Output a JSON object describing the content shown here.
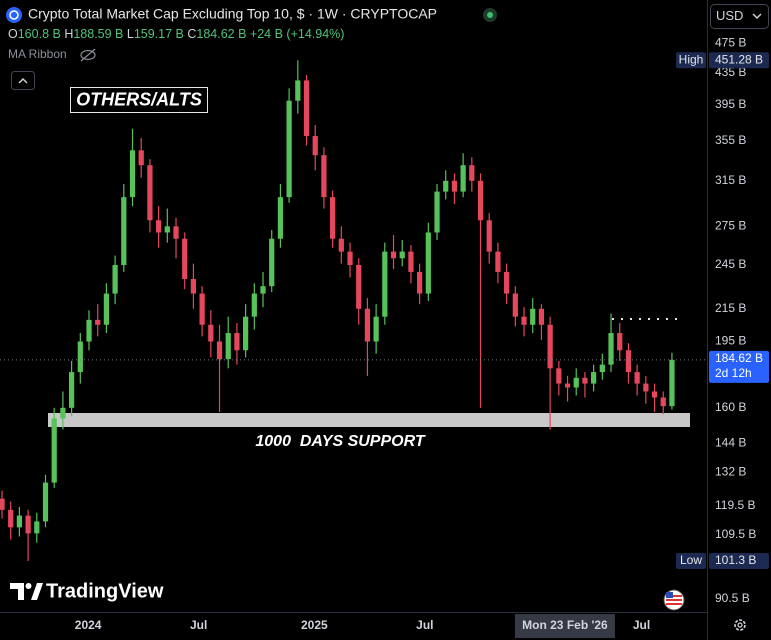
{
  "header": {
    "title": "Crypto Total Market Cap Excluding Top 10, $ · 1W · CRYPTOCAP",
    "ohlc_legend": [
      {
        "key": "O",
        "value": "160.8 B"
      },
      {
        "key": "H",
        "value": "188.59 B"
      },
      {
        "key": "L",
        "value": "159.17 B"
      },
      {
        "key": "C",
        "value": "184.62 B"
      }
    ],
    "change": "+24 B (+14.94%)",
    "indicator": "MA Ribbon",
    "currency": "USD"
  },
  "annotations": {
    "tag": "OTHERS/ALTS",
    "support": "1000  DAYS SUPPORT"
  },
  "price_labels": {
    "high_label": "High",
    "high_value": "451.28 B",
    "last_value": "184.62 B",
    "countdown": "2d 12h",
    "low_label": "Low",
    "low_value": "101.3 B"
  },
  "branding": "TradingView",
  "chart_data": {
    "type": "candlestick",
    "log_scale": true,
    "grid": false,
    "up_color": "#57c25a",
    "down_color": "#e5475c",
    "xlim": [
      -0.23,
      81.03
    ],
    "ylim": [
      87,
      494
    ],
    "xticks": [
      {
        "value": 9.9,
        "label": "2024"
      },
      {
        "value": 22.6,
        "label": "Jul"
      },
      {
        "value": 35.9,
        "label": "2025"
      },
      {
        "value": 48.6,
        "label": "Jul"
      },
      {
        "value": 64.7,
        "label": "Mon 23 Feb '26",
        "crosshair": true
      },
      {
        "value": 73.5,
        "label": "Jul"
      }
    ],
    "yticks": [
      {
        "value": 475,
        "label": "475 B"
      },
      {
        "value": 435,
        "label": "435 B"
      },
      {
        "value": 395,
        "label": "395 B"
      },
      {
        "value": 355,
        "label": "355 B"
      },
      {
        "value": 315,
        "label": "315 B"
      },
      {
        "value": 275,
        "label": "275 B"
      },
      {
        "value": 245,
        "label": "245 B"
      },
      {
        "value": 215,
        "label": "215 B"
      },
      {
        "value": 195,
        "label": "195 B"
      },
      {
        "value": 160,
        "label": "160 B"
      },
      {
        "value": 144,
        "label": "144 B"
      },
      {
        "value": 132,
        "label": "132 B"
      },
      {
        "value": 119.5,
        "label": "119.5 B"
      },
      {
        "value": 109.5,
        "label": "109.5 B"
      },
      {
        "value": 90.5,
        "label": "90.5 B"
      }
    ],
    "ohlc": [
      [
        122,
        125,
        115,
        118
      ],
      [
        118,
        121,
        108,
        112
      ],
      [
        112,
        119,
        109,
        116
      ],
      [
        116,
        118,
        101.3,
        110
      ],
      [
        110,
        117,
        107,
        114
      ],
      [
        114,
        131,
        112,
        128
      ],
      [
        128,
        160,
        126,
        155
      ],
      [
        155,
        168,
        150,
        160
      ],
      [
        160,
        184,
        156,
        178
      ],
      [
        178,
        200,
        172,
        195
      ],
      [
        195,
        214,
        190,
        208
      ],
      [
        208,
        218,
        198,
        205
      ],
      [
        205,
        232,
        200,
        225
      ],
      [
        225,
        252,
        218,
        245
      ],
      [
        245,
        312,
        240,
        300
      ],
      [
        300,
        368,
        292,
        345
      ],
      [
        345,
        358,
        318,
        330
      ],
      [
        330,
        336,
        270,
        280
      ],
      [
        280,
        292,
        258,
        270
      ],
      [
        270,
        290,
        262,
        275
      ],
      [
        275,
        282,
        250,
        265
      ],
      [
        265,
        270,
        228,
        235
      ],
      [
        235,
        246,
        215,
        225
      ],
      [
        225,
        230,
        198,
        205
      ],
      [
        205,
        214,
        186,
        195
      ],
      [
        195,
        205,
        158,
        185
      ],
      [
        185,
        210,
        180,
        200
      ],
      [
        200,
        206,
        182,
        190
      ],
      [
        190,
        218,
        186,
        210
      ],
      [
        210,
        232,
        202,
        225
      ],
      [
        225,
        240,
        216,
        230
      ],
      [
        230,
        272,
        226,
        265
      ],
      [
        265,
        312,
        258,
        300
      ],
      [
        300,
        415,
        295,
        400
      ],
      [
        400,
        451.28,
        385,
        425
      ],
      [
        425,
        432,
        350,
        360
      ],
      [
        360,
        372,
        325,
        340
      ],
      [
        340,
        348,
        290,
        300
      ],
      [
        300,
        306,
        258,
        265
      ],
      [
        265,
        275,
        246,
        255
      ],
      [
        255,
        262,
        236,
        245
      ],
      [
        245,
        250,
        205,
        215
      ],
      [
        215,
        222,
        176,
        195
      ],
      [
        195,
        218,
        188,
        210
      ],
      [
        210,
        262,
        205,
        255
      ],
      [
        255,
        268,
        242,
        250
      ],
      [
        250,
        264,
        244,
        255
      ],
      [
        255,
        260,
        232,
        240
      ],
      [
        240,
        246,
        218,
        225
      ],
      [
        225,
        278,
        220,
        270
      ],
      [
        270,
        312,
        264,
        305
      ],
      [
        305,
        325,
        298,
        315
      ],
      [
        315,
        322,
        294,
        305
      ],
      [
        305,
        342,
        300,
        330
      ],
      [
        330,
        338,
        305,
        315
      ],
      [
        315,
        322,
        160,
        280
      ],
      [
        280,
        286,
        246,
        255
      ],
      [
        255,
        262,
        232,
        240
      ],
      [
        240,
        246,
        218,
        225
      ],
      [
        225,
        230,
        204,
        210
      ],
      [
        210,
        216,
        198,
        205
      ],
      [
        205,
        222,
        200,
        215
      ],
      [
        215,
        218,
        196,
        205
      ],
      [
        205,
        210,
        150,
        180
      ],
      [
        180,
        184,
        166,
        172
      ],
      [
        172,
        176,
        163,
        170
      ],
      [
        170,
        180,
        166,
        175
      ],
      [
        175,
        178,
        165,
        172
      ],
      [
        172,
        182,
        168,
        178
      ],
      [
        178,
        188,
        174,
        182
      ],
      [
        182,
        212,
        178,
        200
      ],
      [
        200,
        206,
        184,
        190
      ],
      [
        190,
        194,
        172,
        178
      ],
      [
        178,
        182,
        166,
        172
      ],
      [
        172,
        176,
        162,
        168
      ],
      [
        168,
        172,
        158,
        165
      ],
      [
        165,
        168,
        157,
        160.8
      ],
      [
        160.8,
        188.59,
        159.17,
        184.62
      ]
    ]
  }
}
